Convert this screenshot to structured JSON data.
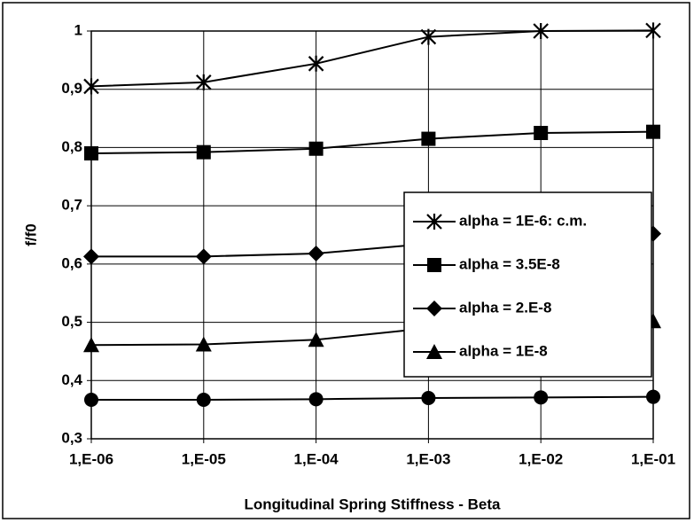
{
  "chart_data": {
    "type": "line",
    "x_label": "Longitudinal Spring Stiffness - Beta",
    "y_label": "f/f0",
    "categories": [
      "1,E-06",
      "1,E-05",
      "1,E-04",
      "1,E-03",
      "1,E-02",
      "1,E-01"
    ],
    "ylim": [
      0.3,
      1
    ],
    "yticks": [
      {
        "value": 0.3,
        "label": "0,3"
      },
      {
        "value": 0.4,
        "label": "0,4"
      },
      {
        "value": 0.5,
        "label": "0,5"
      },
      {
        "value": 0.6,
        "label": "0,6"
      },
      {
        "value": 0.7,
        "label": "0,7"
      },
      {
        "value": 0.8,
        "label": "0,8"
      },
      {
        "value": 0.9,
        "label": "0,9"
      },
      1
    ],
    "grid": true,
    "legend": "center right",
    "series": [
      {
        "name": "alpha = 1E-6: c.m.",
        "color": "#000000",
        "marker": "asterisk",
        "values": [
          0.905,
          0.912,
          0.944,
          0.99,
          1.0,
          1.001
        ]
      },
      {
        "name": "alpha = 3.5E-8",
        "color": "#000000",
        "marker": "square",
        "values": [
          0.79,
          0.792,
          0.798,
          0.815,
          0.825,
          0.827
        ]
      },
      {
        "name": "alpha = 2.E-8",
        "color": "#000000",
        "marker": "diamond",
        "values": [
          0.613,
          0.613,
          0.618,
          0.635,
          0.645,
          0.652
        ]
      },
      {
        "name": "alpha = 1E-8",
        "color": "#000000",
        "marker": "triangle",
        "values": [
          0.461,
          0.462,
          0.47,
          0.49,
          0.5,
          0.502
        ]
      },
      {
        "color": "#000000",
        "marker": "circle",
        "values": [
          0.367,
          0.367,
          0.368,
          0.37,
          0.371,
          0.372
        ]
      }
    ]
  }
}
